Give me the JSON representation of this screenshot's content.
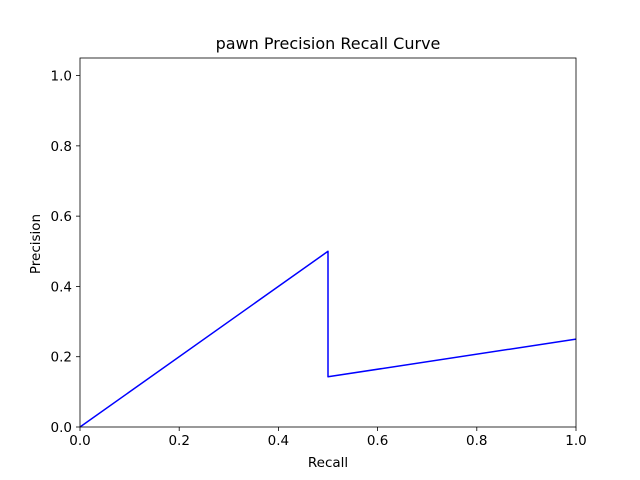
{
  "chart_data": {
    "type": "line",
    "title": "pawn Precision Recall Curve",
    "xlabel": "Recall",
    "ylabel": "Precision",
    "xlim": [
      0.0,
      1.0
    ],
    "ylim": [
      0.0,
      1.05
    ],
    "xticks": [
      0.0,
      0.2,
      0.4,
      0.6,
      0.8,
      1.0
    ],
    "yticks": [
      0.0,
      0.2,
      0.4,
      0.6,
      0.8,
      1.0
    ],
    "xtick_labels": [
      "0.0",
      "0.2",
      "0.4",
      "0.6",
      "0.8",
      "1.0"
    ],
    "ytick_labels": [
      "0.0",
      "0.2",
      "0.4",
      "0.6",
      "0.8",
      "1.0"
    ],
    "grid": false,
    "legend": "none",
    "series": [
      {
        "color": "#0000ff",
        "x": [
          0.0,
          0.5,
          0.5,
          1.0
        ],
        "y": [
          0.0,
          0.5,
          0.143,
          0.25
        ]
      }
    ]
  }
}
